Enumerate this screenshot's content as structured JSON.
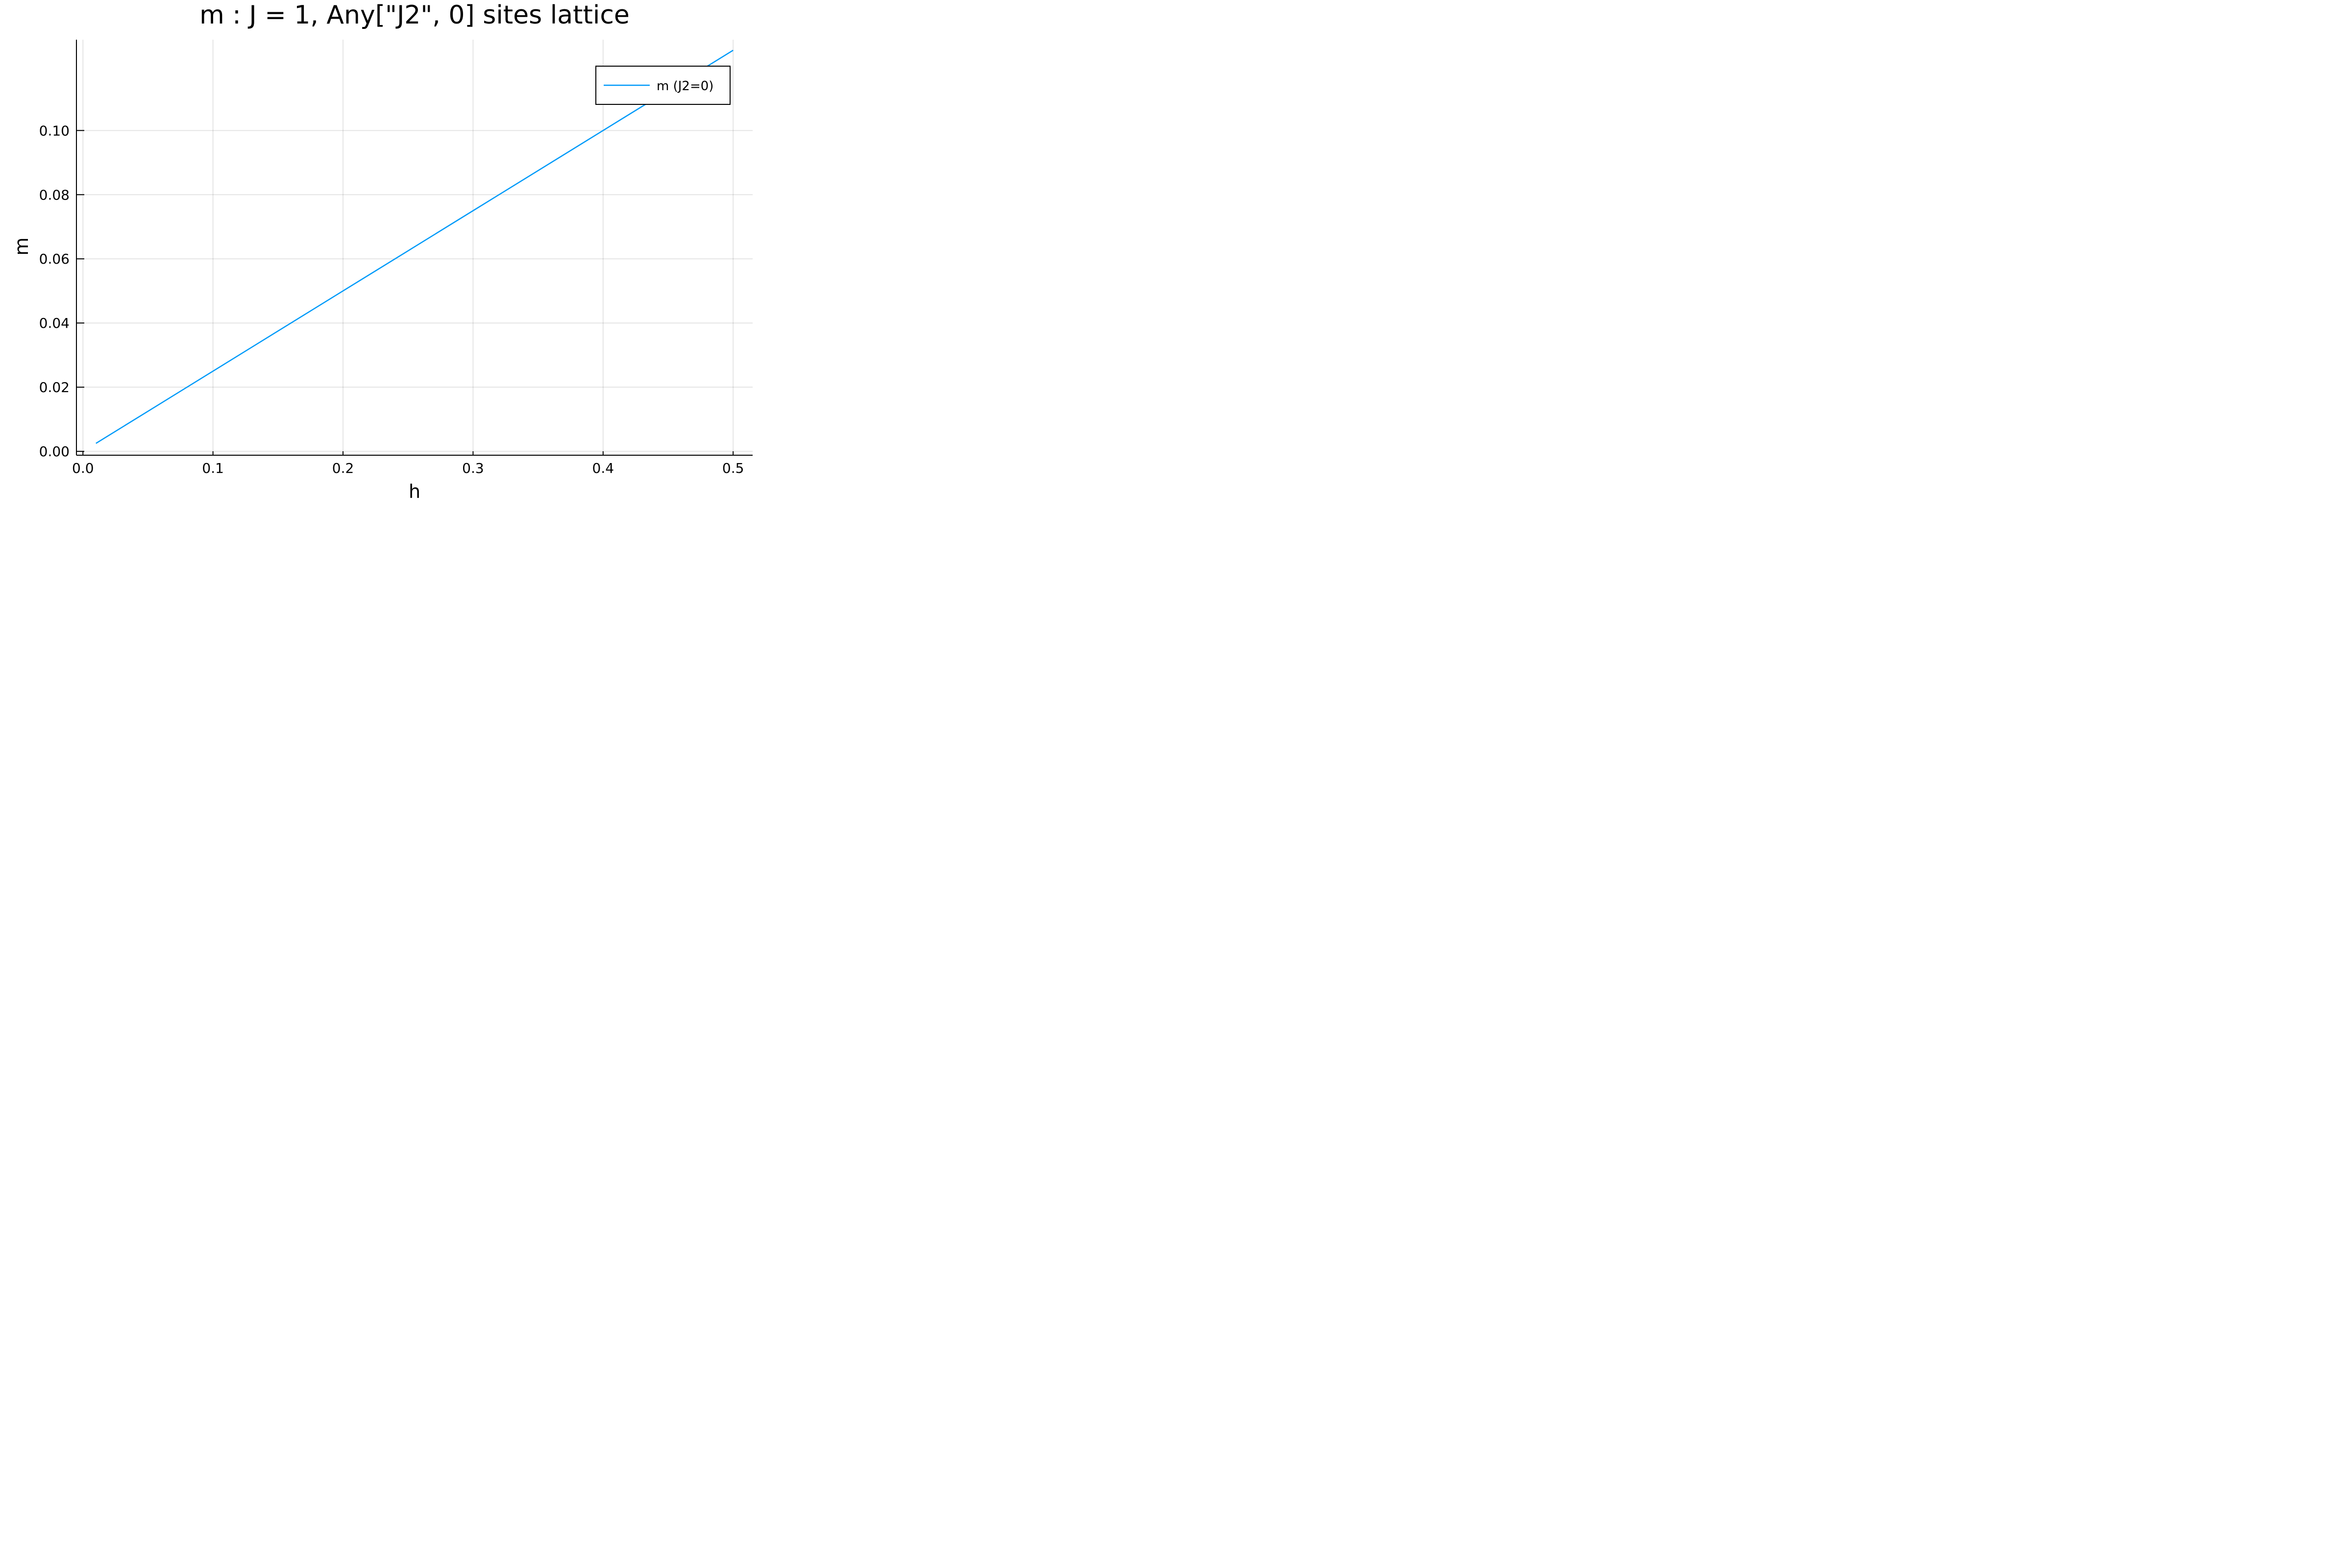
{
  "chart_data": {
    "type": "line",
    "title": "m : J = 1, Any[\"J2\", 0] sites lattice",
    "xlabel": "h",
    "ylabel": "m",
    "xlim": [
      -0.005,
      0.515
    ],
    "ylim": [
      -0.0012,
      0.1283
    ],
    "xticks": [
      0.0,
      0.1,
      0.2,
      0.3,
      0.4,
      0.5
    ],
    "xtick_labels": [
      "0.0",
      "0.1",
      "0.2",
      "0.3",
      "0.4",
      "0.5"
    ],
    "yticks": [
      0.0,
      0.02,
      0.04,
      0.06,
      0.08,
      0.1
    ],
    "ytick_labels": [
      "0.00",
      "0.02",
      "0.04",
      "0.06",
      "0.08",
      "0.10"
    ],
    "grid": true,
    "legend_position": "top-right",
    "series": [
      {
        "name": "m (J2=0)",
        "color": "#009af9",
        "x": [
          0.01,
          0.05,
          0.1,
          0.15,
          0.2,
          0.25,
          0.3,
          0.35,
          0.4,
          0.45,
          0.5
        ],
        "y": [
          0.0025,
          0.0125,
          0.025,
          0.0375,
          0.05,
          0.0625,
          0.075,
          0.0875,
          0.1,
          0.1125,
          0.125
        ]
      }
    ]
  }
}
